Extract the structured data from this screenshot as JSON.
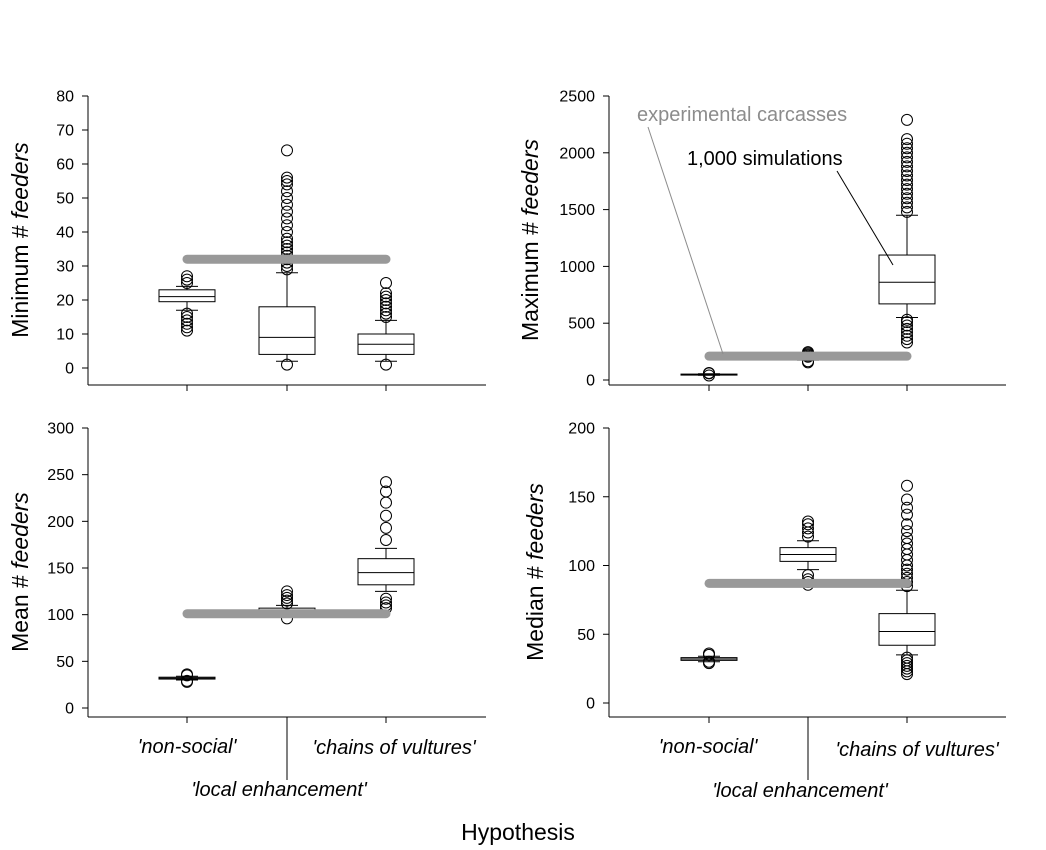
{
  "figure": {
    "xlabel": "Hypothesis"
  },
  "chart_data": [
    {
      "type": "box",
      "ylabel_prefix": "Minimum # ",
      "ylabel_italic": "feeders",
      "ylim": [
        0,
        80
      ],
      "yticks": [
        0,
        10,
        20,
        30,
        40,
        50,
        60,
        70,
        80
      ],
      "categories": [
        "'non-social'",
        "'local enhancement'",
        "'chains of vultures'"
      ],
      "boxes": [
        {
          "q1": 19.5,
          "median": 21,
          "q3": 23,
          "whisker_low": 17,
          "whisker_high": 24,
          "outliers": [
            11,
            12,
            13,
            14,
            15,
            16,
            25,
            26,
            27
          ]
        },
        {
          "q1": 4,
          "median": 9,
          "q3": 18,
          "whisker_low": 2,
          "whisker_high": 28,
          "outliers": [
            1,
            29,
            30,
            31,
            32,
            33,
            34,
            35,
            36,
            37,
            38,
            40,
            42,
            44,
            46,
            48,
            50,
            52,
            54,
            55,
            56,
            64
          ]
        },
        {
          "q1": 4,
          "median": 7,
          "q3": 10,
          "whisker_low": 2,
          "whisker_high": 14,
          "outliers": [
            1,
            15,
            16,
            17,
            18,
            19,
            20,
            21,
            22,
            25
          ]
        }
      ],
      "experimental_value": 32
    },
    {
      "type": "box",
      "ylabel_prefix": "Maximum # ",
      "ylabel_italic": "feeders",
      "ylim": [
        0,
        2500
      ],
      "yticks": [
        0,
        500,
        1000,
        1500,
        2000,
        2500
      ],
      "categories": [
        "'non-social'",
        "'local enhancement'",
        "'chains of vultures'"
      ],
      "boxes": [
        {
          "q1": 45,
          "median": 48,
          "q3": 52,
          "whisker_low": 42,
          "whisker_high": 55,
          "outliers": [
            40,
            58,
            62
          ]
        },
        {
          "q1": 180,
          "median": 185,
          "q3": 190,
          "whisker_low": 175,
          "whisker_high": 198,
          "outliers": [
            155,
            165,
            205,
            215,
            225,
            235,
            245
          ]
        },
        {
          "q1": 670,
          "median": 860,
          "q3": 1100,
          "whisker_low": 550,
          "whisker_high": 1450,
          "outliers": [
            330,
            360,
            390,
            420,
            450,
            480,
            510,
            530,
            1480,
            1520,
            1560,
            1600,
            1640,
            1680,
            1720,
            1760,
            1800,
            1840,
            1880,
            1920,
            1960,
            2000,
            2040,
            2080,
            2120,
            2290
          ]
        }
      ],
      "experimental_value": 210,
      "annotations": {
        "experimental": "experimental carcasses",
        "simulations": "1,000 simulations"
      }
    },
    {
      "type": "box",
      "ylabel_prefix": "Mean # ",
      "ylabel_italic": "feeders",
      "ylim": [
        0,
        300
      ],
      "yticks": [
        0,
        50,
        100,
        150,
        200,
        250,
        300
      ],
      "categories": [
        "'non-social'",
        "'local enhancement'",
        "'chains of vultures'"
      ],
      "boxes": [
        {
          "q1": 31,
          "median": 32,
          "q3": 33,
          "whisker_low": 30,
          "whisker_high": 34,
          "outliers": [
            28,
            29,
            35,
            36
          ]
        },
        {
          "q1": 101,
          "median": 104,
          "q3": 107,
          "whisker_low": 99,
          "whisker_high": 110,
          "outliers": [
            96,
            112,
            115,
            118,
            121,
            125
          ]
        },
        {
          "q1": 132,
          "median": 145,
          "q3": 160,
          "whisker_low": 125,
          "whisker_high": 171,
          "outliers": [
            107,
            110,
            113,
            117,
            180,
            193,
            206,
            220,
            232,
            242
          ]
        }
      ],
      "experimental_value": 101
    },
    {
      "type": "box",
      "ylabel_prefix": "Median # ",
      "ylabel_italic": "feeders",
      "ylim": [
        0,
        200
      ],
      "yticks": [
        0,
        50,
        100,
        150,
        200
      ],
      "categories": [
        "'non-social'",
        "'local enhancement'",
        "'chains of vultures'"
      ],
      "boxes": [
        {
          "q1": 31,
          "median": 32,
          "q3": 33,
          "whisker_low": 30,
          "whisker_high": 34,
          "outliers": [
            29,
            30,
            35,
            36
          ]
        },
        {
          "q1": 103,
          "median": 108,
          "q3": 113,
          "whisker_low": 97,
          "whisker_high": 118,
          "outliers": [
            86,
            88,
            90,
            93,
            121,
            124,
            127,
            130,
            132
          ]
        },
        {
          "q1": 42,
          "median": 52,
          "q3": 65,
          "whisker_low": 35,
          "whisker_high": 82,
          "outliers": [
            21,
            23,
            25,
            27,
            29,
            31,
            33,
            85,
            88,
            91,
            94,
            97,
            100,
            104,
            108,
            112,
            116,
            120,
            125,
            130,
            137,
            142,
            148,
            158
          ]
        }
      ],
      "experimental_value": 87
    }
  ]
}
